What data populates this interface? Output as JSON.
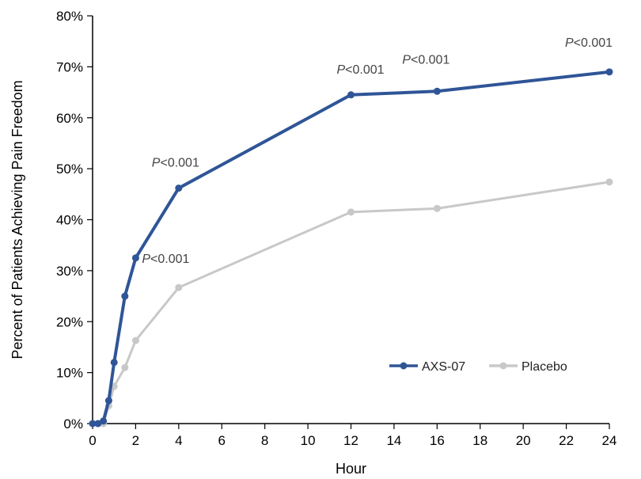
{
  "chart_data": {
    "type": "line",
    "xlabel": "Hour",
    "ylabel": "Percent of Patients Achieving Pain Freedom",
    "xlim": [
      0,
      24
    ],
    "ylim": [
      0,
      80
    ],
    "x_ticks": [
      "0",
      "2",
      "4",
      "6",
      "8",
      "10",
      "12",
      "14",
      "16",
      "18",
      "20",
      "22",
      "24"
    ],
    "y_ticks": [
      "0%",
      "10%",
      "20%",
      "30%",
      "40%",
      "50%",
      "60%",
      "70%",
      "80%"
    ],
    "grid": false,
    "legend_position": "bottom-right",
    "series": [
      {
        "name": "AXS-07",
        "color": "#2f5597",
        "x": [
          0,
          0.25,
          0.5,
          0.75,
          1,
          1.5,
          2,
          4,
          12,
          16,
          24
        ],
        "values": [
          0,
          0,
          0.5,
          4.5,
          12,
          25,
          32.5,
          46.2,
          64.5,
          65.2,
          69
        ]
      },
      {
        "name": "Placebo",
        "color": "#c8c8c8",
        "x": [
          0,
          0.25,
          0.5,
          0.75,
          1,
          1.5,
          2,
          4,
          12,
          16,
          24
        ],
        "values": [
          0,
          0,
          0,
          3.5,
          7.3,
          11,
          16.3,
          26.7,
          41.5,
          42.2,
          47.4
        ]
      }
    ],
    "annotations": [
      {
        "italic": "P",
        "text": "<0.001",
        "x": 2
      },
      {
        "italic": "P",
        "text": "<0.001",
        "x": 4
      },
      {
        "italic": "P",
        "text": "<0.001",
        "x": 12
      },
      {
        "italic": "P",
        "text": "<0.001",
        "x": 16
      },
      {
        "italic": "P",
        "text": "<0.001",
        "x": 24
      }
    ]
  }
}
